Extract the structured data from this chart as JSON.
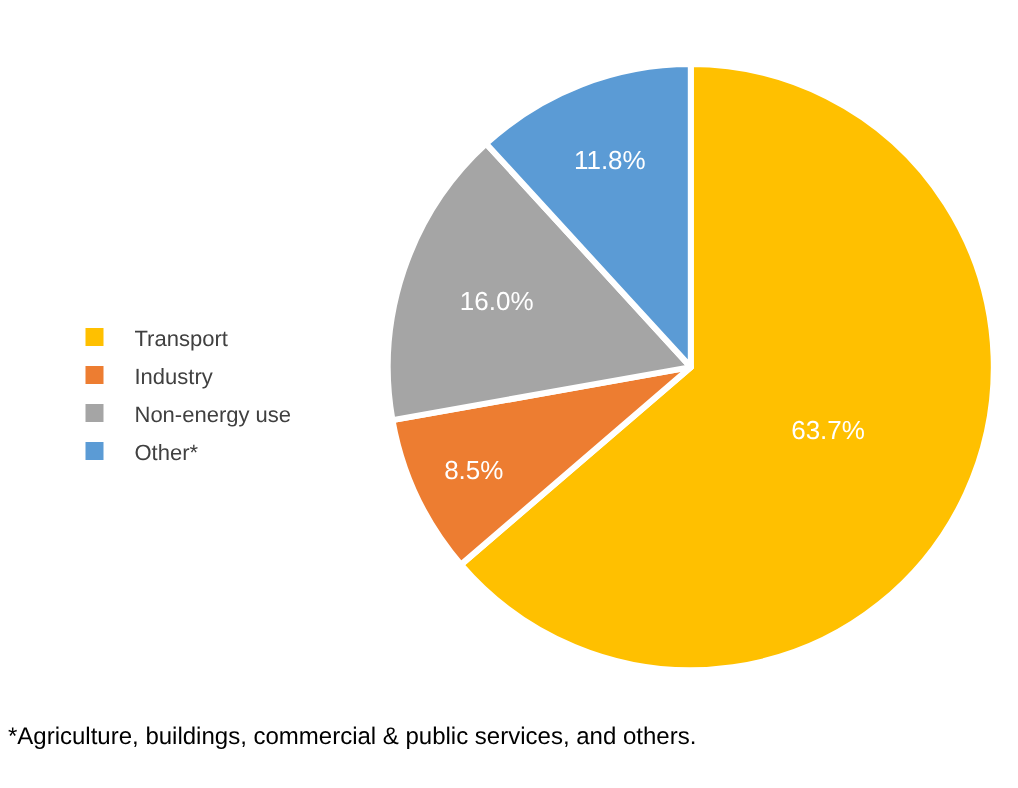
{
  "chart_data": {
    "type": "pie",
    "categories": [
      "Transport",
      "Industry",
      "Non-energy use",
      "Other*"
    ],
    "values": [
      63.7,
      8.5,
      16.0,
      11.8
    ],
    "colors": [
      "#ffc000",
      "#ed7d31",
      "#a5a5a5",
      "#5b9bd5"
    ],
    "value_labels": [
      "63.7%",
      "8.5%",
      "16.0%",
      "11.8%"
    ],
    "legend": "left",
    "annotations": [
      "*Agriculture, buildings, commercial & public services, and others."
    ]
  }
}
